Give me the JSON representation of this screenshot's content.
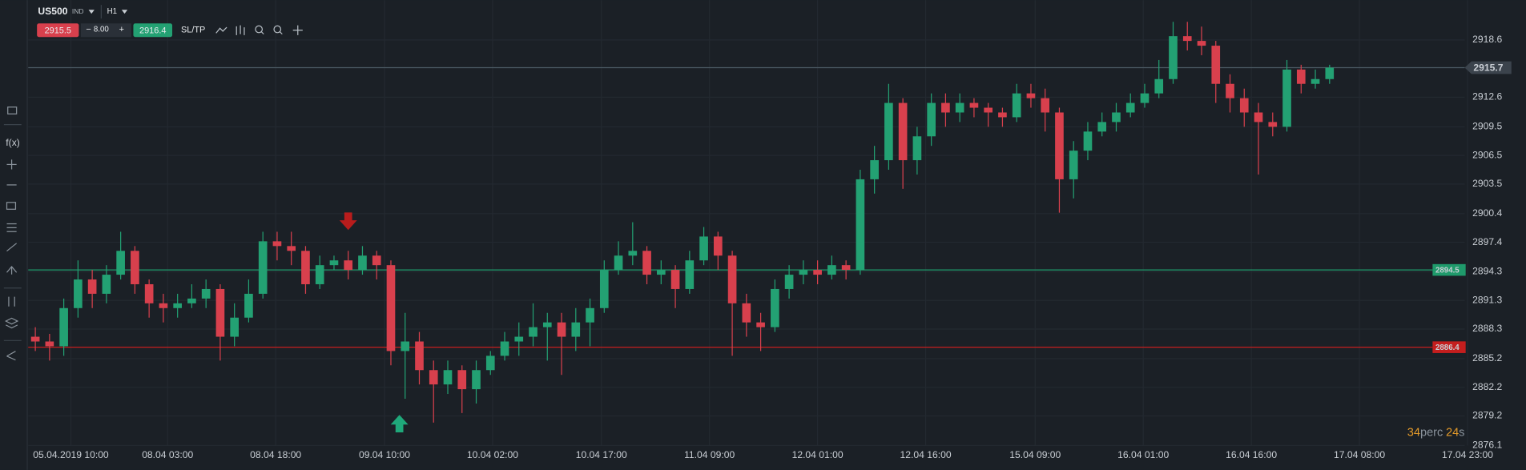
{
  "toolbar": {
    "symbol": "US500",
    "asset_class": "IND",
    "timeframe": "H1",
    "bid": "2915.5",
    "minus": "−",
    "volume": "8.00",
    "plus": "+",
    "ask": "2916.4",
    "sltp": "SL/TP"
  },
  "sidebar": {
    "function_label": "f(x)"
  },
  "chart_data": {
    "type": "candlestick",
    "open": [
      2887.5,
      2887.0,
      2886.5,
      2890.5,
      2893.5,
      2892.0,
      2894.0,
      2896.5,
      2893.0,
      2891.0,
      2890.5,
      2891.0,
      2891.5,
      2892.5,
      2887.5,
      2889.5,
      2892.0,
      2897.5,
      2897.0,
      2896.5,
      2893.0,
      2895.0,
      2895.5,
      2894.5,
      2896.0,
      2895.0,
      2886.0,
      2887.0,
      2884.0,
      2882.5,
      2884.0,
      2882.0,
      2884.0,
      2885.5,
      2887.0,
      2887.5,
      2888.5,
      2889.0,
      2887.5,
      2889.0,
      2890.5,
      2894.5,
      2896.0,
      2896.5,
      2894.0,
      2894.5,
      2892.5,
      2895.5,
      2898.0,
      2896.0,
      2891.0,
      2889.0,
      2888.5,
      2892.5,
      2894.0,
      2894.5,
      2894.0,
      2895.0,
      2894.5,
      2904.0,
      2906.0,
      2912.0,
      2906.0,
      2908.5,
      2912.0,
      2911.0,
      2912.0,
      2911.5,
      2911.0,
      2910.5,
      2913.0,
      2912.5,
      2911.0,
      2904.0,
      2907.0,
      2909.0,
      2910.0,
      2911.0,
      2912.0,
      2913.0,
      2914.5,
      2919.0,
      2918.5,
      2918.0,
      2914.0,
      2912.5,
      2911.0,
      2910.0,
      2909.5,
      2915.5,
      2914.0,
      2914.5
    ],
    "high": [
      2888.5,
      2887.8,
      2891.5,
      2895.5,
      2894.5,
      2895.0,
      2898.5,
      2897.0,
      2893.5,
      2892.0,
      2892.0,
      2893.0,
      2893.5,
      2893.0,
      2891.0,
      2893.5,
      2898.5,
      2898.5,
      2898.5,
      2897.0,
      2896.0,
      2896.0,
      2896.5,
      2897.0,
      2896.5,
      2895.5,
      2890.0,
      2888.0,
      2885.0,
      2885.0,
      2884.5,
      2885.0,
      2886.0,
      2888.0,
      2889.0,
      2891.0,
      2890.0,
      2890.0,
      2890.5,
      2891.5,
      2895.5,
      2897.5,
      2899.5,
      2897.0,
      2895.5,
      2895.0,
      2896.5,
      2899.0,
      2898.5,
      2896.5,
      2892.0,
      2890.0,
      2893.5,
      2895.0,
      2895.5,
      2895.5,
      2896.0,
      2895.5,
      2905.0,
      2907.5,
      2914.0,
      2912.5,
      2909.5,
      2913.0,
      2913.0,
      2913.0,
      2912.5,
      2912.0,
      2911.5,
      2914.0,
      2914.0,
      2913.5,
      2911.5,
      2908.0,
      2910.0,
      2911.0,
      2912.0,
      2913.0,
      2914.0,
      2916.5,
      2920.5,
      2920.5,
      2920.0,
      2918.5,
      2915.0,
      2913.5,
      2912.0,
      2911.0,
      2916.5,
      2916.0,
      2915.5,
      2916.0
    ],
    "low": [
      2886.0,
      2885.0,
      2885.5,
      2889.5,
      2890.5,
      2891.0,
      2893.5,
      2892.0,
      2889.5,
      2889.0,
      2889.5,
      2890.5,
      2890.5,
      2885.0,
      2886.5,
      2889.0,
      2891.5,
      2895.5,
      2895.0,
      2892.0,
      2892.5,
      2894.5,
      2893.5,
      2894.0,
      2893.5,
      2884.5,
      2881.0,
      2882.5,
      2878.5,
      2881.5,
      2879.5,
      2880.5,
      2883.5,
      2885.0,
      2885.5,
      2886.5,
      2885.0,
      2883.5,
      2886.0,
      2886.5,
      2890.0,
      2894.0,
      2895.0,
      2893.0,
      2893.0,
      2890.5,
      2892.0,
      2895.0,
      2894.5,
      2885.5,
      2887.5,
      2886.0,
      2888.0,
      2891.5,
      2893.0,
      2893.0,
      2893.5,
      2893.5,
      2894.0,
      2902.5,
      2905.0,
      2903.0,
      2904.5,
      2907.5,
      2909.5,
      2910.0,
      2910.5,
      2909.5,
      2909.5,
      2910.0,
      2911.5,
      2909.0,
      2900.5,
      2902.0,
      2906.0,
      2908.5,
      2909.0,
      2910.5,
      2911.5,
      2912.5,
      2914.0,
      2917.5,
      2917.0,
      2912.0,
      2911.0,
      2909.5,
      2904.5,
      2908.5,
      2909.0,
      2913.0,
      2913.5,
      2914.0
    ],
    "close": [
      2887.0,
      2886.5,
      2890.5,
      2893.5,
      2892.0,
      2894.0,
      2896.5,
      2893.0,
      2891.0,
      2890.5,
      2891.0,
      2891.5,
      2892.5,
      2887.5,
      2889.5,
      2892.0,
      2897.5,
      2897.0,
      2896.5,
      2893.0,
      2895.0,
      2895.5,
      2894.5,
      2896.0,
      2895.0,
      2886.0,
      2887.0,
      2884.0,
      2882.5,
      2884.0,
      2882.0,
      2884.0,
      2885.5,
      2887.0,
      2887.5,
      2888.5,
      2889.0,
      2887.5,
      2889.0,
      2890.5,
      2894.5,
      2896.0,
      2896.5,
      2894.0,
      2894.5,
      2892.5,
      2895.5,
      2898.0,
      2896.0,
      2891.0,
      2889.0,
      2888.5,
      2892.5,
      2894.0,
      2894.5,
      2894.0,
      2895.0,
      2894.5,
      2904.0,
      2906.0,
      2912.0,
      2906.0,
      2908.5,
      2912.0,
      2911.0,
      2912.0,
      2911.5,
      2911.0,
      2910.5,
      2913.0,
      2912.5,
      2911.0,
      2904.0,
      2907.0,
      2909.0,
      2910.0,
      2911.0,
      2912.0,
      2913.0,
      2914.5,
      2919.0,
      2918.5,
      2918.0,
      2914.0,
      2912.5,
      2911.0,
      2910.0,
      2909.5,
      2915.5,
      2914.0,
      2914.5,
      2915.7
    ],
    "up_color": "#23a173",
    "down_color": "#d8404d",
    "grid": true,
    "xlim": [
      -0.5,
      100.5
    ],
    "xticks": [
      {
        "value": 2.5,
        "label": "05.04.2019 10:00"
      },
      {
        "value": 9.3,
        "label": "08.04 03:00"
      },
      {
        "value": 16.9,
        "label": "08.04 18:00"
      },
      {
        "value": 24.55,
        "label": "09.04 10:00"
      },
      {
        "value": 32.15,
        "label": "10.04 02:00"
      },
      {
        "value": 39.8,
        "label": "10.04 17:00"
      },
      {
        "value": 47.4,
        "label": "11.04 09:00"
      },
      {
        "value": 55.0,
        "label": "12.04 01:00"
      },
      {
        "value": 62.6,
        "label": "12.04 16:00"
      },
      {
        "value": 70.3,
        "label": "15.04 09:00"
      },
      {
        "value": 77.9,
        "label": "16.04 01:00"
      },
      {
        "value": 85.5,
        "label": "16.04 16:00"
      },
      {
        "value": 93.1,
        "label": "17.04 08:00"
      },
      {
        "value": 100.7,
        "label": "17.04 23:00"
      }
    ],
    "ylim": [
      2874.05,
      2922.78
    ],
    "yticks": [
      2918.6,
      2912.6,
      2909.5,
      2906.5,
      2903.5,
      2900.4,
      2897.4,
      2894.3,
      2891.3,
      2888.3,
      2885.2,
      2882.2,
      2879.2,
      2876.1
    ],
    "price_lines": [
      {
        "value": 2915.7,
        "color": "#4b5a63"
      },
      {
        "value": 2894.5,
        "color": "#1f9a6b"
      },
      {
        "value": 2886.4,
        "color": "#c41e1e"
      }
    ],
    "markers": [
      {
        "kind": "sell",
        "index": 22.0,
        "value": 2899.5,
        "color": "#b81c1c"
      },
      {
        "kind": "buy",
        "index": 25.6,
        "value": 2878.5,
        "color": "#1fa87a"
      }
    ]
  },
  "countdown": {
    "minutes": "34",
    "minutes_unit": "perc",
    "seconds": "24",
    "seconds_unit": "s"
  }
}
